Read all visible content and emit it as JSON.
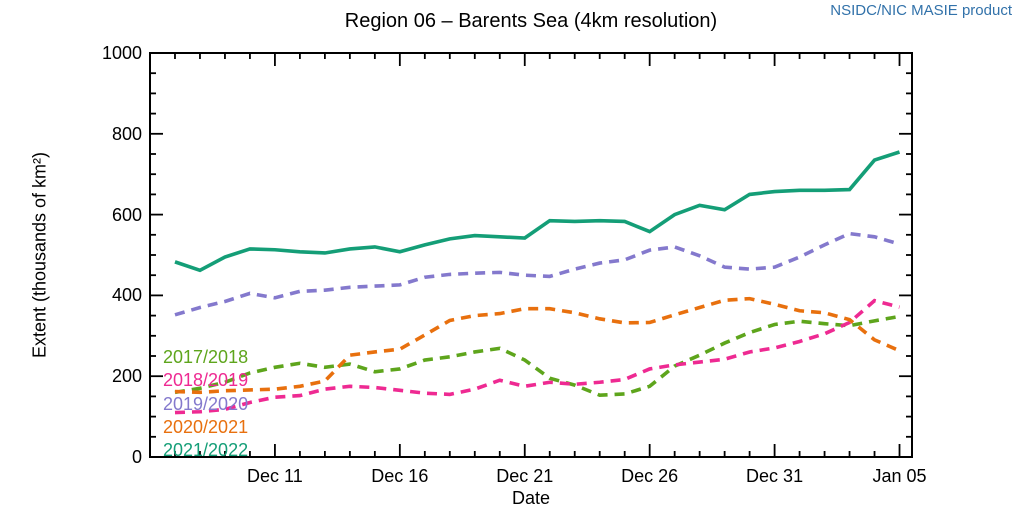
{
  "chart_data": {
    "type": "line",
    "title": "Region 06 – Barents Sea (4km resolution)",
    "attribution": "NSIDC/NIC MASIE product",
    "attribution_color": "#3272aa",
    "xlabel": "Date",
    "ylabel": "Extent (thousands of km²)",
    "ylim": [
      0,
      1000
    ],
    "y_major_ticks": [
      0,
      200,
      400,
      600,
      800,
      1000
    ],
    "y_minor_step": 50,
    "x_domain_days": [
      0,
      30.5
    ],
    "x_major_ticks": [
      {
        "day": 5,
        "label": "Dec 11"
      },
      {
        "day": 10,
        "label": "Dec 16"
      },
      {
        "day": 15,
        "label": "Dec 21"
      },
      {
        "day": 20,
        "label": "Dec 26"
      },
      {
        "day": 25,
        "label": "Dec 31"
      },
      {
        "day": 30,
        "label": "Jan 05"
      }
    ],
    "x_minor_tick_days": [
      1,
      2,
      3,
      4,
      6,
      7,
      8,
      9,
      11,
      12,
      13,
      14,
      16,
      17,
      18,
      19,
      21,
      22,
      23,
      24,
      26,
      27,
      28,
      29
    ],
    "grid": false,
    "legend_position": "inside-lower-left",
    "dates": [
      "Dec 07",
      "Dec 08",
      "Dec 09",
      "Dec 10",
      "Dec 11",
      "Dec 12",
      "Dec 13",
      "Dec 14",
      "Dec 15",
      "Dec 16",
      "Dec 17",
      "Dec 18",
      "Dec 19",
      "Dec 20",
      "Dec 21",
      "Dec 22",
      "Dec 23",
      "Dec 24",
      "Dec 25",
      "Dec 26",
      "Dec 27",
      "Dec 28",
      "Dec 29",
      "Dec 30",
      "Dec 31",
      "Jan 01",
      "Jan 02",
      "Jan 03",
      "Jan 04",
      "Jan 05"
    ],
    "series": [
      {
        "name": "2017/2018",
        "color": "#5ea51c",
        "style": "dashed",
        "values": [
          160,
          170,
          185,
          208,
          222,
          232,
          222,
          230,
          211,
          218,
          240,
          248,
          260,
          269,
          240,
          195,
          178,
          153,
          156,
          175,
          225,
          252,
          282,
          308,
          328,
          336,
          330,
          325,
          337,
          348
        ]
      },
      {
        "name": "2018/2019",
        "color": "#ee2a92",
        "style": "dashed",
        "values": [
          110,
          112,
          118,
          135,
          148,
          152,
          168,
          175,
          172,
          165,
          158,
          155,
          168,
          190,
          175,
          185,
          180,
          185,
          192,
          218,
          228,
          235,
          242,
          260,
          270,
          286,
          305,
          333,
          387,
          371
        ]
      },
      {
        "name": "2019/2020",
        "color": "#8479cd",
        "style": "dashed",
        "values": [
          352,
          370,
          385,
          405,
          394,
          410,
          413,
          420,
          423,
          426,
          445,
          452,
          455,
          457,
          450,
          447,
          465,
          480,
          488,
          512,
          520,
          498,
          470,
          465,
          470,
          495,
          525,
          553,
          545,
          527
        ]
      },
      {
        "name": "2020/2021",
        "color": "#e8700e",
        "style": "dashed",
        "values": [
          162,
          160,
          164,
          166,
          168,
          175,
          188,
          252,
          260,
          267,
          302,
          338,
          350,
          355,
          367,
          367,
          357,
          342,
          332,
          333,
          352,
          370,
          388,
          392,
          378,
          362,
          357,
          340,
          290,
          263
        ]
      },
      {
        "name": "2021/2022",
        "color": "#149e77",
        "style": "solid",
        "values": [
          483,
          462,
          495,
          515,
          513,
          508,
          505,
          515,
          520,
          508,
          525,
          540,
          548,
          545,
          542,
          585,
          583,
          585,
          583,
          558,
          600,
          623,
          612,
          650,
          657,
          660,
          660,
          662,
          735,
          755
        ]
      }
    ]
  }
}
